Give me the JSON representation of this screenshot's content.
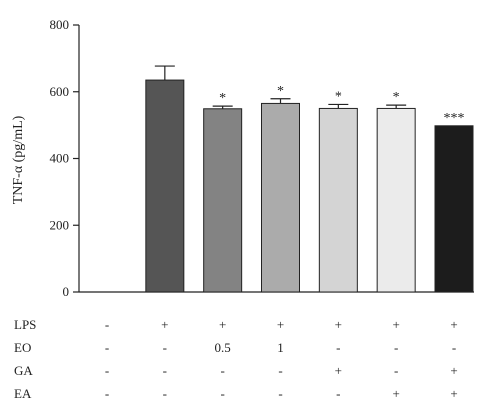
{
  "chart_data": {
    "type": "bar",
    "ylabel": "TNF-α (pg/mL)",
    "ylim": [
      0,
      800
    ],
    "yticks": [
      0,
      200,
      400,
      600,
      800
    ],
    "grid": false,
    "bars": [
      {
        "value": 0,
        "error": 0,
        "sig": "",
        "color": "#ffffff"
      },
      {
        "value": 635,
        "error": 42,
        "sig": "",
        "color": "#555555"
      },
      {
        "value": 549,
        "error": 8,
        "sig": "*",
        "color": "#838383"
      },
      {
        "value": 565,
        "error": 14,
        "sig": "*",
        "color": "#ababab"
      },
      {
        "value": 550,
        "error": 12,
        "sig": "*",
        "color": "#d4d4d4"
      },
      {
        "value": 550,
        "error": 10,
        "sig": "*",
        "color": "#ebebeb"
      },
      {
        "value": 498,
        "error": 0,
        "sig": "***",
        "color": "#1c1c1c"
      }
    ],
    "treatment_table": [
      {
        "label": "LPS",
        "values": [
          "-",
          "+",
          "+",
          "+",
          "+",
          "+",
          "+"
        ]
      },
      {
        "label": "EO",
        "values": [
          "-",
          "-",
          "0.5",
          "1",
          "-",
          "-",
          "-"
        ]
      },
      {
        "label": "GA",
        "values": [
          "-",
          "-",
          "-",
          "-",
          "+",
          "-",
          "+"
        ]
      },
      {
        "label": "EA",
        "values": [
          "-",
          "-",
          "-",
          "-",
          "-",
          "+",
          "+"
        ]
      }
    ]
  }
}
